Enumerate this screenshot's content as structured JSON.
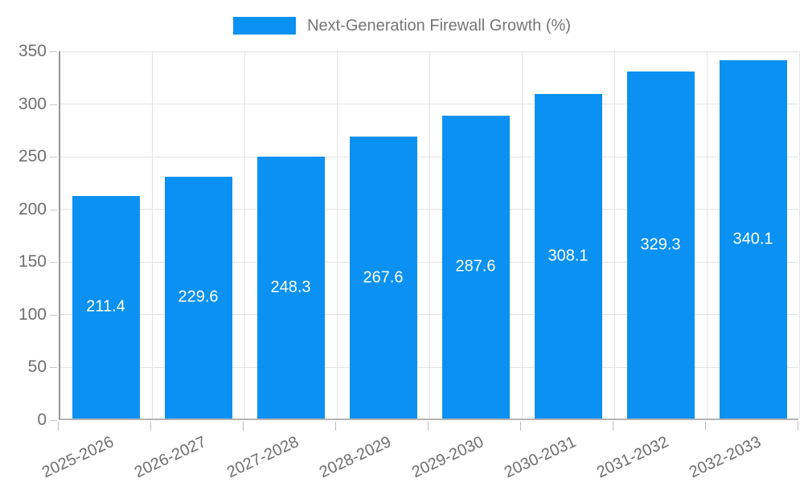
{
  "chart_data": {
    "type": "bar",
    "title": "",
    "xlabel": "",
    "ylabel": "",
    "categories": [
      "2025-2026",
      "2026-2027",
      "2027-2028",
      "2028-2029",
      "2029-2030",
      "2030-2031",
      "2031-2032",
      "2032-2033"
    ],
    "series": [
      {
        "name": "Next-Generation Firewall Growth (%)",
        "values": [
          211.4,
          229.6,
          248.3,
          267.6,
          287.6,
          308.1,
          329.3,
          340.1
        ]
      }
    ],
    "value_labels": [
      "211.4",
      "229.6",
      "248.3",
      "267.6",
      "287.6",
      "308.1",
      "329.3",
      "340.1"
    ],
    "ylim": [
      0,
      350
    ],
    "yticks": [
      0,
      50,
      100,
      150,
      200,
      250,
      300,
      350
    ],
    "grid": true,
    "legend_position": "top-center",
    "colors": {
      "bar": "#0a91f1",
      "bar_label_text": "#ffffff",
      "y_axis_line": "#969696",
      "x_axis_line": "#b3b3b3",
      "grid_line": "#e3e3e3",
      "tick_label": "#6f6f6f",
      "legend_text": "#757575",
      "background": "#ffffff"
    }
  }
}
